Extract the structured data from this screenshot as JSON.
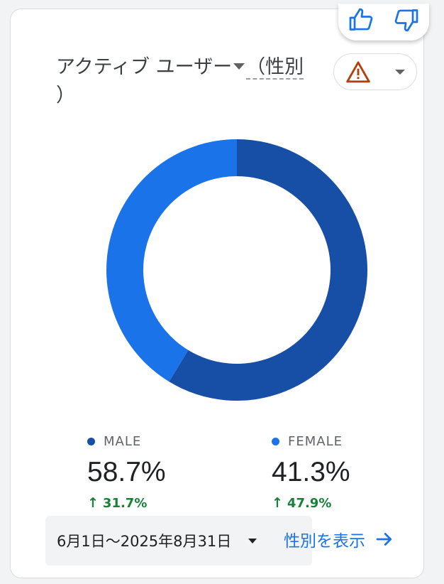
{
  "card": {
    "title_main": "アクティブ ユーザー",
    "title_dimension": "（性別",
    "title_close": "）"
  },
  "feedback": {
    "like_icon": "thumb-up-icon",
    "dislike_icon": "thumb-down-icon"
  },
  "warning": {
    "icon": "warning-triangle-icon",
    "color": "#c5221f"
  },
  "chart_data": {
    "type": "pie",
    "style": "donut",
    "categories": [
      "MALE",
      "FEMALE"
    ],
    "values": [
      58.7,
      41.3
    ],
    "colors": [
      "#174ea6",
      "#1a73e8"
    ]
  },
  "legend": [
    {
      "label": "MALE",
      "value": "58.7%",
      "change": "31.7%",
      "color": "#174ea6"
    },
    {
      "label": "FEMALE",
      "value": "41.3%",
      "change": "47.9%",
      "color": "#1a73e8"
    }
  ],
  "footer": {
    "date_range": "6月1日～2025年8月31日",
    "view_link": "性別を表示"
  }
}
